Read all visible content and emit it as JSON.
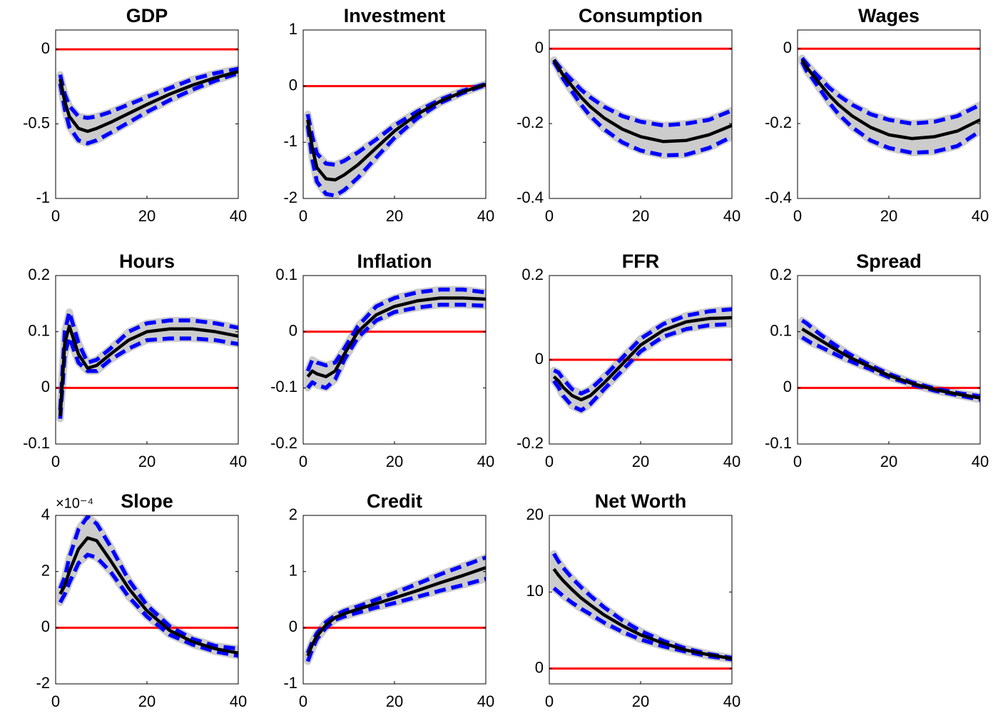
{
  "chart_data": [
    {
      "type": "line",
      "title": "GDP",
      "x": [
        1,
        2,
        3,
        5,
        7,
        9,
        12,
        16,
        20,
        25,
        30,
        35,
        40
      ],
      "xlim": [
        0,
        40
      ],
      "xticks": [
        0,
        20,
        40
      ],
      "ylim": [
        -1,
        0.13
      ],
      "yticks": [
        -1,
        -0.5,
        0
      ],
      "reference_line": {
        "value": 0,
        "color": "#ff0000"
      },
      "band_color": "#cccccc",
      "series": [
        {
          "color": "#000000",
          "values": [
            -0.2,
            -0.35,
            -0.45,
            -0.53,
            -0.55,
            -0.53,
            -0.49,
            -0.43,
            -0.37,
            -0.3,
            -0.24,
            -0.19,
            -0.15
          ]
        },
        {
          "color": "#0000ff",
          "values": [
            -0.17,
            -0.3,
            -0.38,
            -0.45,
            -0.46,
            -0.45,
            -0.42,
            -0.37,
            -0.32,
            -0.26,
            -0.2,
            -0.16,
            -0.13
          ]
        },
        {
          "color": "#0000ff",
          "values": [
            -0.23,
            -0.4,
            -0.52,
            -0.61,
            -0.63,
            -0.61,
            -0.56,
            -0.49,
            -0.42,
            -0.34,
            -0.27,
            -0.21,
            -0.16
          ]
        }
      ]
    },
    {
      "type": "line",
      "title": "Investment",
      "x": [
        1,
        2,
        3,
        5,
        7,
        9,
        12,
        16,
        20,
        25,
        30,
        35,
        40
      ],
      "xlim": [
        0,
        40
      ],
      "xticks": [
        0,
        20,
        40
      ],
      "ylim": [
        -2,
        1
      ],
      "yticks": [
        -2,
        -1,
        0,
        1
      ],
      "reference_line": {
        "value": 0,
        "color": "#ff0000"
      },
      "band_color": "#cccccc",
      "series": [
        {
          "color": "#000000",
          "values": [
            -0.6,
            -1.1,
            -1.45,
            -1.65,
            -1.67,
            -1.58,
            -1.4,
            -1.1,
            -0.8,
            -0.5,
            -0.27,
            -0.1,
            0.03
          ]
        },
        {
          "color": "#0000ff",
          "values": [
            -0.5,
            -0.9,
            -1.2,
            -1.38,
            -1.4,
            -1.33,
            -1.18,
            -0.95,
            -0.7,
            -0.45,
            -0.24,
            -0.08,
            0.04
          ]
        },
        {
          "color": "#0000ff",
          "values": [
            -0.7,
            -1.3,
            -1.7,
            -1.92,
            -1.95,
            -1.85,
            -1.63,
            -1.27,
            -0.92,
            -0.57,
            -0.3,
            -0.12,
            0.02
          ]
        }
      ]
    },
    {
      "type": "line",
      "title": "Consumption",
      "x": [
        1,
        2,
        3,
        5,
        7,
        9,
        12,
        16,
        20,
        25,
        30,
        35,
        40
      ],
      "xlim": [
        0,
        40
      ],
      "xticks": [
        0,
        20,
        40
      ],
      "ylim": [
        -0.4,
        0.05
      ],
      "yticks": [
        -0.4,
        -0.2,
        0
      ],
      "reference_line": {
        "value": 0,
        "color": "#ff0000"
      },
      "band_color": "#cccccc",
      "series": [
        {
          "color": "#000000",
          "values": [
            -0.03,
            -0.05,
            -0.07,
            -0.1,
            -0.13,
            -0.155,
            -0.185,
            -0.215,
            -0.235,
            -0.248,
            -0.245,
            -0.23,
            -0.205
          ]
        },
        {
          "color": "#0000ff",
          "values": [
            -0.03,
            -0.045,
            -0.06,
            -0.085,
            -0.11,
            -0.13,
            -0.155,
            -0.18,
            -0.195,
            -0.205,
            -0.2,
            -0.19,
            -0.165
          ]
        },
        {
          "color": "#0000ff",
          "values": [
            -0.035,
            -0.055,
            -0.08,
            -0.115,
            -0.15,
            -0.18,
            -0.215,
            -0.25,
            -0.272,
            -0.285,
            -0.283,
            -0.265,
            -0.235
          ]
        }
      ]
    },
    {
      "type": "line",
      "title": "Wages",
      "x": [
        1,
        2,
        3,
        5,
        7,
        9,
        12,
        16,
        20,
        25,
        30,
        35,
        40
      ],
      "xlim": [
        0,
        40
      ],
      "xticks": [
        0,
        20,
        40
      ],
      "ylim": [
        -0.4,
        0.05
      ],
      "yticks": [
        -0.4,
        -0.2,
        0
      ],
      "reference_line": {
        "value": 0,
        "color": "#ff0000"
      },
      "band_color": "#cccccc",
      "series": [
        {
          "color": "#000000",
          "values": [
            -0.03,
            -0.05,
            -0.065,
            -0.095,
            -0.125,
            -0.15,
            -0.18,
            -0.21,
            -0.23,
            -0.24,
            -0.235,
            -0.22,
            -0.19
          ]
        },
        {
          "color": "#0000ff",
          "values": [
            -0.025,
            -0.04,
            -0.055,
            -0.08,
            -0.105,
            -0.125,
            -0.15,
            -0.175,
            -0.19,
            -0.2,
            -0.195,
            -0.18,
            -0.15
          ]
        },
        {
          "color": "#0000ff",
          "values": [
            -0.035,
            -0.06,
            -0.075,
            -0.11,
            -0.145,
            -0.175,
            -0.21,
            -0.245,
            -0.265,
            -0.278,
            -0.275,
            -0.26,
            -0.22
          ]
        }
      ]
    },
    {
      "type": "line",
      "title": "Hours",
      "x": [
        1,
        2,
        3,
        5,
        7,
        9,
        12,
        16,
        20,
        25,
        30,
        35,
        40
      ],
      "xlim": [
        0,
        40
      ],
      "xticks": [
        0,
        20,
        40
      ],
      "ylim": [
        -0.1,
        0.2
      ],
      "yticks": [
        -0.1,
        0,
        0.1,
        0.2
      ],
      "reference_line": {
        "value": 0,
        "color": "#ff0000"
      },
      "band_color": "#cccccc",
      "series": [
        {
          "color": "#000000",
          "values": [
            -0.05,
            0.08,
            0.11,
            0.06,
            0.035,
            0.04,
            0.06,
            0.085,
            0.1,
            0.105,
            0.105,
            0.1,
            0.092
          ]
        },
        {
          "color": "#0000ff",
          "values": [
            -0.04,
            0.1,
            0.135,
            0.08,
            0.045,
            0.05,
            0.07,
            0.1,
            0.115,
            0.12,
            0.12,
            0.115,
            0.107
          ]
        },
        {
          "color": "#0000ff",
          "values": [
            -0.055,
            0.06,
            0.09,
            0.045,
            0.03,
            0.03,
            0.05,
            0.07,
            0.085,
            0.088,
            0.088,
            0.085,
            0.078
          ]
        }
      ]
    },
    {
      "type": "line",
      "title": "Inflation",
      "x": [
        1,
        2,
        3,
        5,
        7,
        9,
        12,
        16,
        20,
        25,
        30,
        35,
        40
      ],
      "xlim": [
        0,
        40
      ],
      "xticks": [
        0,
        20,
        40
      ],
      "ylim": [
        -0.2,
        0.1
      ],
      "yticks": [
        -0.2,
        -0.1,
        0,
        0.1
      ],
      "reference_line": {
        "value": 0,
        "color": "#ff0000"
      },
      "band_color": "#cccccc",
      "series": [
        {
          "color": "#000000",
          "values": [
            -0.08,
            -0.07,
            -0.075,
            -0.08,
            -0.07,
            -0.04,
            0.0,
            0.03,
            0.045,
            0.055,
            0.06,
            0.06,
            0.058
          ]
        },
        {
          "color": "#0000ff",
          "values": [
            -0.07,
            -0.05,
            -0.055,
            -0.06,
            -0.055,
            -0.03,
            0.01,
            0.045,
            0.06,
            0.07,
            0.075,
            0.075,
            0.07
          ]
        },
        {
          "color": "#0000ff",
          "values": [
            -0.1,
            -0.09,
            -0.095,
            -0.1,
            -0.085,
            -0.05,
            -0.01,
            0.02,
            0.035,
            0.043,
            0.048,
            0.048,
            0.046
          ]
        }
      ]
    },
    {
      "type": "line",
      "title": "FFR",
      "x": [
        1,
        2,
        3,
        5,
        7,
        9,
        12,
        16,
        20,
        25,
        30,
        35,
        40
      ],
      "xlim": [
        0,
        40
      ],
      "xticks": [
        0,
        20,
        40
      ],
      "ylim": [
        -0.2,
        0.2
      ],
      "yticks": [
        -0.2,
        0,
        0.2
      ],
      "reference_line": {
        "value": 0,
        "color": "#ff0000"
      },
      "band_color": "#cccccc",
      "series": [
        {
          "color": "#000000",
          "values": [
            -0.04,
            -0.05,
            -0.065,
            -0.085,
            -0.095,
            -0.085,
            -0.055,
            -0.01,
            0.035,
            0.07,
            0.09,
            0.098,
            0.1
          ]
        },
        {
          "color": "#0000ff",
          "values": [
            -0.025,
            -0.03,
            -0.045,
            -0.07,
            -0.08,
            -0.07,
            -0.04,
            0.005,
            0.05,
            0.085,
            0.105,
            0.115,
            0.12
          ]
        },
        {
          "color": "#0000ff",
          "values": [
            -0.05,
            -0.065,
            -0.085,
            -0.11,
            -0.12,
            -0.105,
            -0.07,
            -0.025,
            0.02,
            0.055,
            0.073,
            0.082,
            0.085
          ]
        }
      ]
    },
    {
      "type": "line",
      "title": "Spread",
      "x": [
        1,
        2,
        3,
        5,
        7,
        9,
        12,
        16,
        20,
        25,
        30,
        35,
        40
      ],
      "xlim": [
        0,
        40
      ],
      "xticks": [
        0,
        20,
        40
      ],
      "ylim": [
        -0.1,
        0.2
      ],
      "yticks": [
        -0.1,
        0,
        0.1,
        0.2
      ],
      "reference_line": {
        "value": 0,
        "color": "#ff0000"
      },
      "band_color": "#cccccc",
      "series": [
        {
          "color": "#000000",
          "values": [
            0.105,
            0.1,
            0.095,
            0.085,
            0.075,
            0.065,
            0.052,
            0.037,
            0.022,
            0.008,
            -0.003,
            -0.011,
            -0.018
          ]
        },
        {
          "color": "#0000ff",
          "values": [
            0.12,
            0.115,
            0.108,
            0.095,
            0.083,
            0.072,
            0.057,
            0.04,
            0.025,
            0.01,
            -0.001,
            -0.009,
            -0.015
          ]
        },
        {
          "color": "#0000ff",
          "values": [
            0.09,
            0.085,
            0.08,
            0.073,
            0.065,
            0.057,
            0.046,
            0.033,
            0.019,
            0.006,
            -0.005,
            -0.013,
            -0.021
          ]
        }
      ]
    },
    {
      "type": "line",
      "title": "Slope",
      "axis_multiplier": "×10⁻⁴",
      "x": [
        1,
        2,
        3,
        5,
        7,
        9,
        12,
        16,
        20,
        25,
        30,
        35,
        40
      ],
      "xlim": [
        0,
        40
      ],
      "xticks": [
        0,
        20,
        40
      ],
      "ylim": [
        -2,
        4
      ],
      "yticks": [
        -2,
        0,
        2,
        4
      ],
      "reference_line": {
        "value": 0,
        "color": "#ff0000"
      },
      "band_color": "#cccccc",
      "series": [
        {
          "color": "#000000",
          "values": [
            1.2,
            1.5,
            2.0,
            2.8,
            3.2,
            3.1,
            2.4,
            1.4,
            0.6,
            -0.1,
            -0.5,
            -0.75,
            -0.9
          ]
        },
        {
          "color": "#0000ff",
          "values": [
            1.4,
            1.8,
            2.5,
            3.5,
            3.95,
            3.7,
            2.9,
            1.7,
            0.8,
            0.05,
            -0.4,
            -0.65,
            -0.75
          ]
        },
        {
          "color": "#0000ff",
          "values": [
            0.9,
            1.2,
            1.6,
            2.3,
            2.6,
            2.5,
            2.0,
            1.1,
            0.4,
            -0.25,
            -0.6,
            -0.85,
            -1.0
          ]
        }
      ]
    },
    {
      "type": "line",
      "title": "Credit",
      "x": [
        1,
        2,
        3,
        5,
        7,
        9,
        12,
        16,
        20,
        25,
        30,
        35,
        40
      ],
      "xlim": [
        0,
        40
      ],
      "xticks": [
        0,
        20,
        40
      ],
      "ylim": [
        -1,
        2
      ],
      "yticks": [
        -1,
        0,
        1,
        2
      ],
      "reference_line": {
        "value": 0,
        "color": "#ff0000"
      },
      "band_color": "#cccccc",
      "series": [
        {
          "color": "#000000",
          "values": [
            -0.5,
            -0.3,
            -0.15,
            0.05,
            0.18,
            0.25,
            0.33,
            0.43,
            0.53,
            0.66,
            0.8,
            0.93,
            1.07
          ]
        },
        {
          "color": "#0000ff",
          "values": [
            -0.45,
            -0.25,
            -0.1,
            0.1,
            0.22,
            0.3,
            0.38,
            0.5,
            0.62,
            0.78,
            0.95,
            1.1,
            1.25
          ]
        },
        {
          "color": "#0000ff",
          "values": [
            -0.6,
            -0.38,
            -0.2,
            0.0,
            0.14,
            0.2,
            0.27,
            0.36,
            0.44,
            0.55,
            0.66,
            0.76,
            0.87
          ]
        }
      ]
    },
    {
      "type": "line",
      "title": "Net Worth",
      "x": [
        1,
        2,
        3,
        5,
        7,
        9,
        12,
        16,
        20,
        25,
        30,
        35,
        40
      ],
      "xlim": [
        0,
        40
      ],
      "xticks": [
        0,
        20,
        40
      ],
      "ylim": [
        -2,
        20
      ],
      "yticks": [
        0,
        10,
        20
      ],
      "reference_line": {
        "value": 0,
        "color": "#ff0000"
      },
      "band_color": "#cccccc",
      "series": [
        {
          "color": "#000000",
          "values": [
            13,
            12.2,
            11.5,
            10.3,
            9.2,
            8.3,
            7.0,
            5.6,
            4.4,
            3.3,
            2.4,
            1.8,
            1.3
          ]
        },
        {
          "color": "#0000ff",
          "values": [
            15,
            14,
            13.2,
            11.8,
            10.6,
            9.5,
            8.0,
            6.3,
            4.9,
            3.6,
            2.6,
            1.9,
            1.4
          ]
        },
        {
          "color": "#0000ff",
          "values": [
            10.5,
            10,
            9.5,
            8.6,
            7.8,
            7.1,
            6.0,
            4.8,
            3.8,
            2.9,
            2.2,
            1.6,
            1.2
          ]
        }
      ]
    }
  ]
}
